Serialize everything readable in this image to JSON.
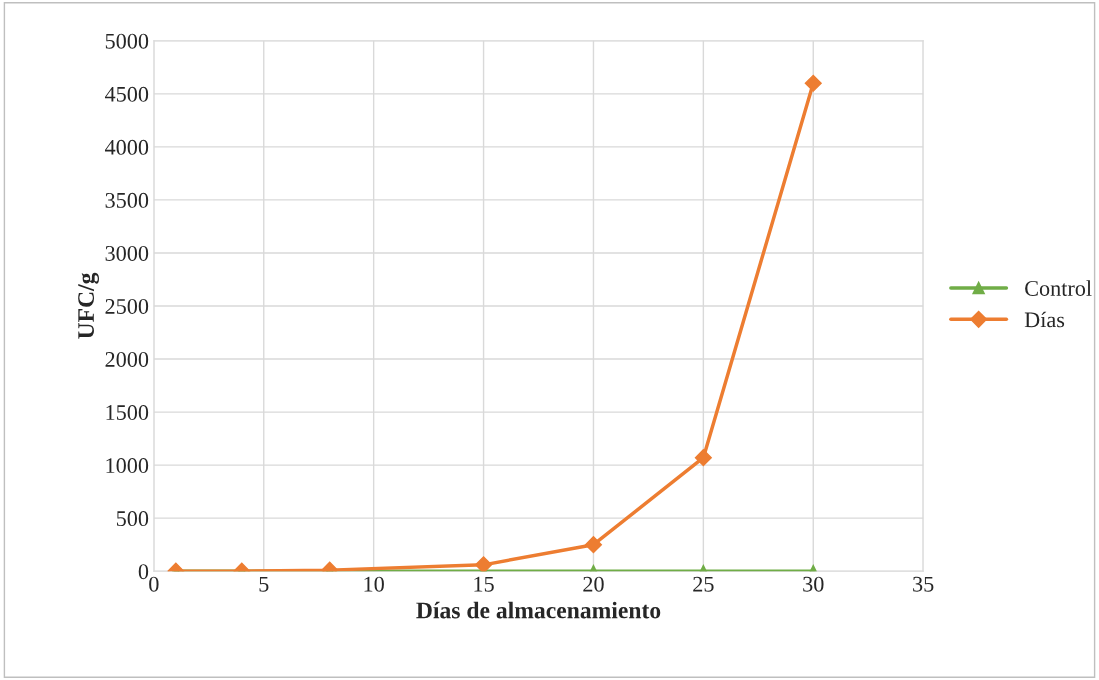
{
  "chart_data": {
    "type": "line",
    "xlabel": "Días de almacenamiento",
    "ylabel": "UFC/g",
    "x": [
      1,
      4,
      8,
      15,
      20,
      25,
      30
    ],
    "series": [
      {
        "name": "Control",
        "color": "#70ad47",
        "marker": "triangle",
        "values": [
          0,
          0,
          0,
          0,
          0,
          0,
          0
        ]
      },
      {
        "name": "Días",
        "color": "#ed7d31",
        "marker": "diamond",
        "values": [
          0,
          0,
          10,
          60,
          250,
          1070,
          4600
        ]
      }
    ],
    "xlim": [
      0,
      35
    ],
    "xticks": [
      0,
      5,
      10,
      15,
      20,
      25,
      30,
      35
    ],
    "ylim": [
      0,
      5000
    ],
    "yticks": [
      0,
      500,
      1000,
      1500,
      2000,
      2500,
      3000,
      3500,
      4000,
      4500,
      5000
    ],
    "grid": true,
    "legend": "right",
    "line_style": "solid"
  }
}
